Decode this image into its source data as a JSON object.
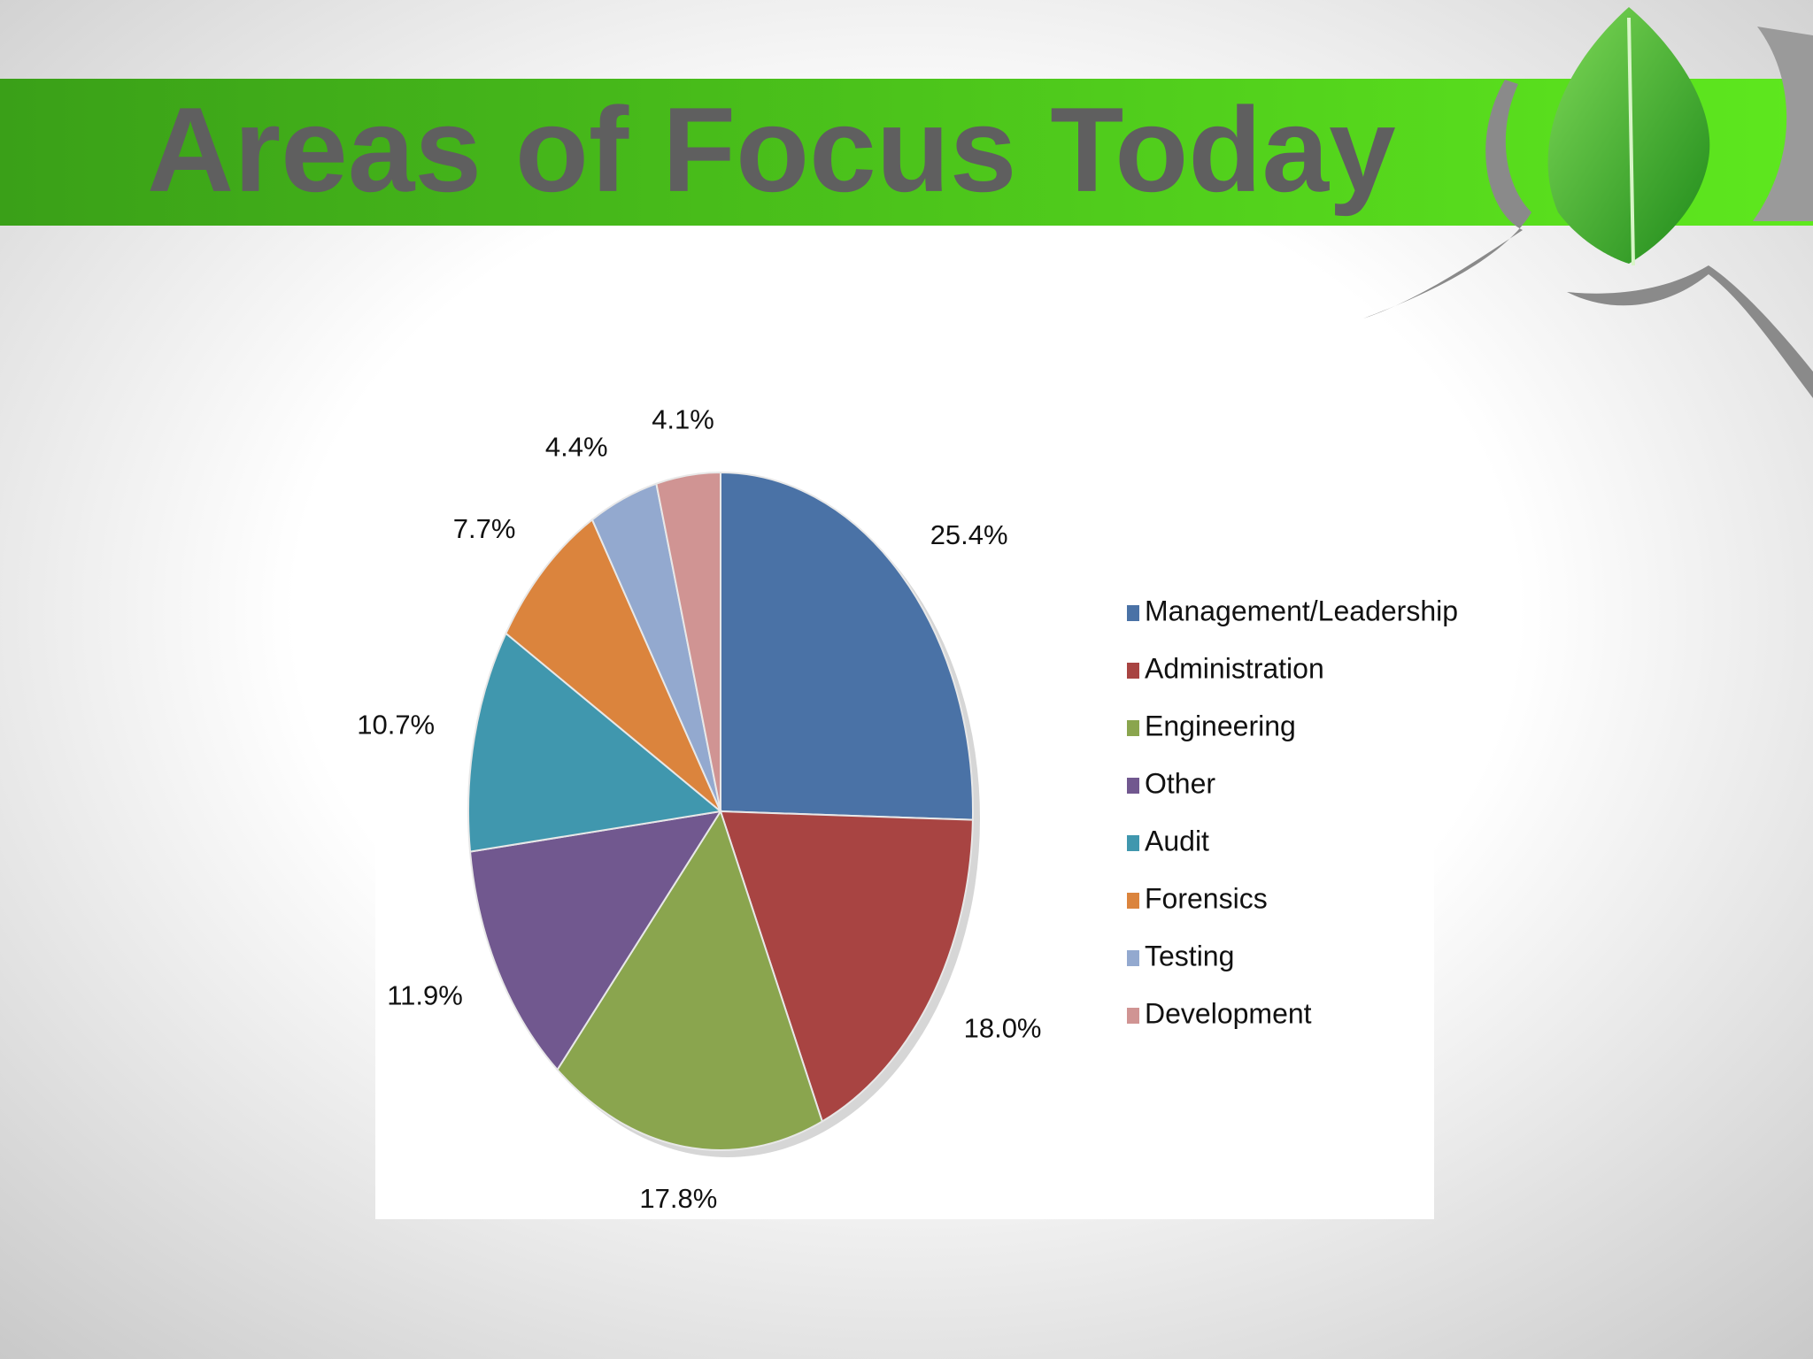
{
  "chart_data": {
    "type": "pie",
    "title": "Areas of Focus Today",
    "categories": [
      "Management/Leadership",
      "Administration",
      "Engineering",
      "Other",
      "Audit",
      "Forensics",
      "Testing",
      "Development"
    ],
    "values": [
      25.4,
      18.0,
      17.8,
      11.9,
      10.7,
      7.7,
      4.4,
      4.1
    ],
    "value_labels": [
      "25.4%",
      "18.0%",
      "17.8%",
      "11.9%",
      "10.7%",
      "7.7%",
      "4.4%",
      "4.1%"
    ],
    "colors": [
      "#4a72a6",
      "#a84442",
      "#8aa54e",
      "#71588f",
      "#4097ae",
      "#db843d",
      "#93a9cf",
      "#d09493"
    ],
    "legend": "right"
  }
}
